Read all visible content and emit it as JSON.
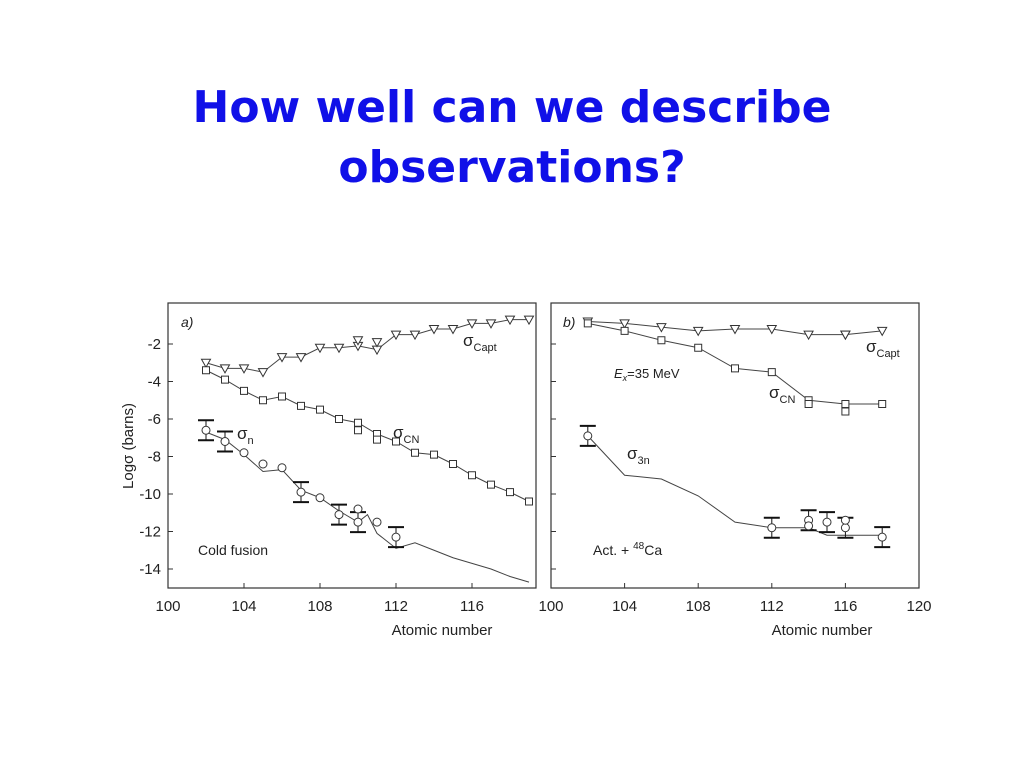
{
  "slide": {
    "title_line1": "How well can we describe",
    "title_line2": "observations?"
  },
  "chart_data": [
    {
      "type": "line",
      "panel_label": "a)",
      "ylabel": "Logσ (barns)",
      "xlabel": "Atomic number",
      "xlim": [
        100,
        120
      ],
      "ylim": [
        -15,
        -0.5
      ],
      "xticks": [
        "100",
        "104",
        "108",
        "112",
        "116"
      ],
      "yticks": [
        "-2",
        "-4",
        "-6",
        "-8",
        "-10",
        "-12",
        "-14"
      ],
      "annotation": "Cold fusion",
      "series": [
        {
          "name": "σCapt",
          "name_main": "σ",
          "name_sub": "Capt",
          "marker": "triangle",
          "x": [
            102,
            103,
            104,
            105,
            106,
            107,
            108,
            109,
            110,
            110,
            111,
            111,
            112,
            113,
            114,
            115,
            116,
            117,
            118,
            119
          ],
          "y": [
            -3.0,
            -3.3,
            -3.3,
            -3.5,
            -2.7,
            -2.7,
            -2.2,
            -2.2,
            -2.1,
            -1.8,
            -2.3,
            -1.9,
            -1.5,
            -1.5,
            -1.2,
            -1.2,
            -0.9,
            -0.9,
            -0.7,
            -0.7
          ]
        },
        {
          "name": "σCN",
          "name_main": "σ",
          "name_sub": "CN",
          "marker": "square",
          "x": [
            102,
            103,
            104,
            105,
            106,
            107,
            108,
            109,
            110,
            110,
            111,
            111,
            112,
            113,
            114,
            115,
            116,
            117,
            118,
            119
          ],
          "y": [
            -3.4,
            -3.9,
            -4.5,
            -5.0,
            -4.8,
            -5.3,
            -5.5,
            -6.0,
            -6.2,
            -6.6,
            -6.8,
            -7.1,
            -7.2,
            -7.8,
            -7.9,
            -8.4,
            -9.0,
            -9.5,
            -9.9,
            -10.4
          ]
        },
        {
          "name": "σn",
          "name_main": "σ",
          "name_sub": "n",
          "marker": "circle",
          "x": [
            102,
            103,
            104,
            105,
            106,
            107,
            108,
            109,
            110,
            110,
            111,
            112
          ],
          "y": [
            -6.6,
            -7.2,
            -7.8,
            -8.4,
            -8.6,
            -9.9,
            -10.2,
            -11.1,
            -11.5,
            -10.8,
            -11.5,
            -12.3
          ],
          "errorbars_x": [
            102,
            103,
            107,
            109,
            110,
            112
          ],
          "line_x": [
            102,
            103,
            104,
            105,
            106,
            107,
            108,
            109,
            110,
            110.5,
            111,
            112,
            113,
            114,
            115,
            116,
            117,
            118,
            119
          ],
          "line_y": [
            -6.7,
            -7.1,
            -7.9,
            -8.8,
            -8.7,
            -9.8,
            -10.2,
            -10.9,
            -11.5,
            -11.1,
            -12.1,
            -12.9,
            -12.6,
            -13.0,
            -13.4,
            -13.7,
            -14.0,
            -14.4,
            -14.7
          ]
        }
      ]
    },
    {
      "type": "line",
      "panel_label": "b)",
      "xlabel": "Atomic number",
      "xlim": [
        100,
        120
      ],
      "ylim": [
        -15,
        -0.5
      ],
      "xticks": [
        "100",
        "104",
        "108",
        "112",
        "116",
        "120"
      ],
      "annotation_ex": "Ex=35 MeV",
      "annotation_ex_main": "E",
      "annotation_ex_sub": "x",
      "annotation_ex_rest": "=35 MeV",
      "annotation": "Act. + 48Ca",
      "annotation_pre": "Act. + ",
      "annotation_sup": "48",
      "annotation_post": "Ca",
      "series": [
        {
          "name": "σCapt",
          "name_main": "σ",
          "name_sub": "Capt",
          "marker": "triangle",
          "x": [
            102,
            104,
            106,
            108,
            110,
            112,
            114,
            116,
            116,
            118
          ],
          "y": [
            -0.8,
            -0.9,
            -1.1,
            -1.3,
            -1.2,
            -1.2,
            -1.5,
            -1.5,
            -1.5,
            -1.3
          ]
        },
        {
          "name": "σCN",
          "name_main": "σ",
          "name_sub": "CN",
          "marker": "square",
          "x": [
            102,
            104,
            106,
            108,
            110,
            112,
            114,
            114,
            116,
            116,
            118
          ],
          "y": [
            -0.9,
            -1.3,
            -1.8,
            -2.2,
            -3.3,
            -3.5,
            -5.0,
            -5.2,
            -5.2,
            -5.6,
            -5.2
          ]
        },
        {
          "name": "σ3n",
          "name_main": "σ",
          "name_sub": "3n",
          "marker": "circle",
          "x": [
            102,
            112,
            114,
            114,
            115,
            116,
            116,
            118
          ],
          "y": [
            -6.9,
            -11.8,
            -11.4,
            -11.7,
            -11.5,
            -11.8,
            -11.4,
            -12.3
          ],
          "errorbars_x": [
            102,
            112,
            114,
            115,
            116,
            118
          ],
          "line_x": [
            102,
            104,
            106,
            108,
            110,
            112,
            114,
            115,
            116,
            118
          ],
          "line_y": [
            -6.9,
            -9.0,
            -9.2,
            -10.1,
            -11.5,
            -11.8,
            -11.8,
            -12.2,
            -12.2,
            -12.2
          ]
        }
      ]
    }
  ]
}
